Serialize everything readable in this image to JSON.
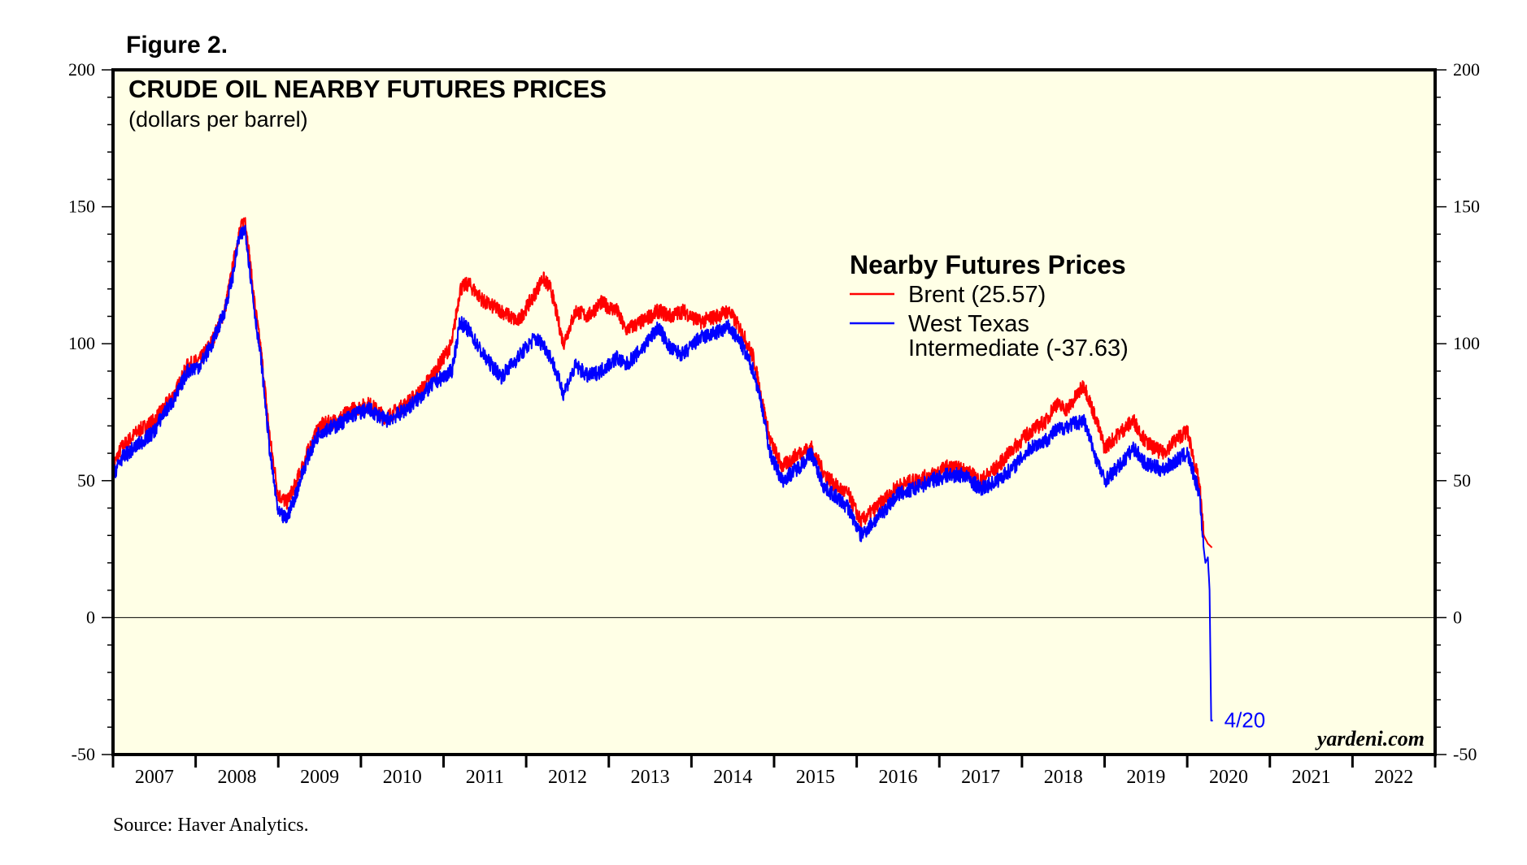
{
  "figure_label": "Figure 2.",
  "source": "Source: Haver Analytics.",
  "brand": "yardeni.com",
  "colors": {
    "plot_bg": "#FFFFE6",
    "brent": "#FF0000",
    "wti": "#0000FF",
    "frame": "#000000"
  },
  "chart_data": {
    "type": "line",
    "title": "CRUDE OIL NEARBY FUTURES PRICES",
    "subtitle": "(dollars per barrel)",
    "ylim": [
      -50,
      200
    ],
    "yticks": [
      "-50",
      "0",
      "50",
      "100",
      "150",
      "200"
    ],
    "xlim": [
      2007,
      2023
    ],
    "xticks": [
      "2007",
      "2008",
      "2009",
      "2010",
      "2011",
      "2012",
      "2013",
      "2014",
      "2015",
      "2016",
      "2017",
      "2018",
      "2019",
      "2020",
      "2021",
      "2022"
    ],
    "legend": {
      "title": "Nearby Futures Prices",
      "brent_label": "Brent (25.57)",
      "wti_label_line1": "West Texas",
      "wti_label_line2": "Intermediate (-37.63)"
    },
    "annotation": "4/20",
    "series": [
      {
        "name": "Brent",
        "color": "#FF0000",
        "x": [
          2007.0,
          2007.1,
          2007.3,
          2007.5,
          2007.6,
          2007.75,
          2007.9,
          2008.05,
          2008.2,
          2008.35,
          2008.45,
          2008.52,
          2008.6,
          2008.7,
          2008.8,
          2008.9,
          2009.0,
          2009.1,
          2009.2,
          2009.35,
          2009.5,
          2009.7,
          2009.9,
          2010.1,
          2010.3,
          2010.5,
          2010.7,
          2010.9,
          2011.1,
          2011.2,
          2011.3,
          2011.5,
          2011.7,
          2011.9,
          2012.1,
          2012.2,
          2012.3,
          2012.45,
          2012.6,
          2012.75,
          2012.9,
          2013.1,
          2013.2,
          2013.4,
          2013.6,
          2013.75,
          2013.9,
          2014.1,
          2014.3,
          2014.45,
          2014.6,
          2014.75,
          2014.85,
          2014.95,
          2015.1,
          2015.3,
          2015.45,
          2015.6,
          2015.75,
          2015.9,
          2016.05,
          2016.3,
          2016.5,
          2016.7,
          2016.9,
          2017.1,
          2017.3,
          2017.5,
          2017.7,
          2017.9,
          2018.1,
          2018.3,
          2018.4,
          2018.55,
          2018.75,
          2018.9,
          2019.0,
          2019.2,
          2019.35,
          2019.5,
          2019.7,
          2019.9,
          2020.0,
          2020.05,
          2020.1,
          2020.15,
          2020.2,
          2020.25,
          2020.3
        ],
        "values": [
          55,
          62,
          68,
          72,
          76,
          82,
          92,
          94,
          101,
          112,
          128,
          140,
          146,
          118,
          95,
          65,
          45,
          42,
          48,
          60,
          70,
          72,
          76,
          78,
          73,
          77,
          82,
          90,
          100,
          120,
          122,
          115,
          112,
          108,
          118,
          124,
          120,
          100,
          112,
          110,
          115,
          112,
          105,
          108,
          112,
          110,
          112,
          108,
          110,
          112,
          105,
          95,
          80,
          65,
          55,
          60,
          62,
          53,
          48,
          45,
          35,
          42,
          48,
          50,
          52,
          55,
          54,
          50,
          55,
          62,
          68,
          72,
          78,
          76,
          85,
          72,
          62,
          68,
          72,
          64,
          60,
          66,
          68,
          62,
          55,
          48,
          30,
          27,
          25.57
        ]
      },
      {
        "name": "West Texas Intermediate",
        "color": "#0000FF",
        "x": [
          2007.0,
          2007.1,
          2007.3,
          2007.5,
          2007.6,
          2007.75,
          2007.9,
          2008.05,
          2008.2,
          2008.35,
          2008.45,
          2008.52,
          2008.6,
          2008.7,
          2008.8,
          2008.9,
          2009.0,
          2009.1,
          2009.2,
          2009.35,
          2009.5,
          2009.7,
          2009.9,
          2010.1,
          2010.3,
          2010.5,
          2010.7,
          2010.9,
          2011.1,
          2011.2,
          2011.3,
          2011.5,
          2011.7,
          2011.9,
          2012.1,
          2012.2,
          2012.3,
          2012.45,
          2012.6,
          2012.75,
          2012.9,
          2013.1,
          2013.2,
          2013.4,
          2013.6,
          2013.75,
          2013.9,
          2014.1,
          2014.3,
          2014.45,
          2014.6,
          2014.75,
          2014.85,
          2014.95,
          2015.1,
          2015.3,
          2015.45,
          2015.6,
          2015.75,
          2015.9,
          2016.05,
          2016.3,
          2016.5,
          2016.7,
          2016.9,
          2017.1,
          2017.3,
          2017.5,
          2017.7,
          2017.9,
          2018.1,
          2018.3,
          2018.4,
          2018.55,
          2018.75,
          2018.9,
          2019.0,
          2019.2,
          2019.35,
          2019.5,
          2019.7,
          2019.9,
          2020.0,
          2020.05,
          2020.1,
          2020.15,
          2020.2,
          2020.22,
          2020.25,
          2020.27,
          2020.29,
          2020.31
        ],
        "values": [
          52,
          58,
          63,
          68,
          74,
          80,
          90,
          92,
          100,
          112,
          125,
          138,
          142,
          115,
          92,
          60,
          38,
          36,
          44,
          58,
          68,
          70,
          74,
          76,
          72,
          75,
          80,
          86,
          90,
          108,
          105,
          95,
          88,
          95,
          102,
          100,
          95,
          82,
          92,
          88,
          90,
          95,
          92,
          98,
          106,
          98,
          96,
          102,
          104,
          106,
          100,
          90,
          78,
          60,
          50,
          55,
          60,
          48,
          44,
          40,
          30,
          38,
          45,
          47,
          50,
          52,
          52,
          47,
          50,
          55,
          62,
          65,
          68,
          70,
          72,
          58,
          50,
          56,
          62,
          56,
          54,
          58,
          60,
          55,
          50,
          45,
          25,
          20,
          22,
          10,
          -37.63,
          -37.63
        ]
      }
    ]
  }
}
